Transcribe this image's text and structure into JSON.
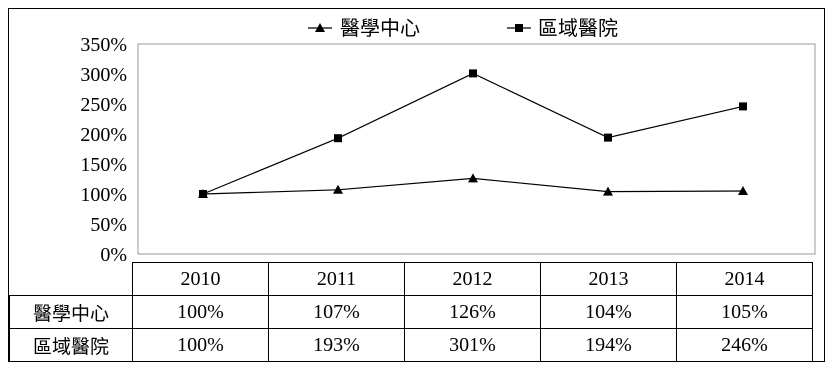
{
  "chart_data": {
    "type": "line",
    "categories": [
      "2010",
      "2011",
      "2012",
      "2013",
      "2014"
    ],
    "series": [
      {
        "name": "醫學中心",
        "marker": "triangle",
        "values": [
          "100%",
          "107%",
          "126%",
          "104%",
          "105%"
        ],
        "numeric": [
          100,
          107,
          126,
          104,
          105
        ]
      },
      {
        "name": "區域醫院",
        "marker": "square",
        "values": [
          "100%",
          "193%",
          "301%",
          "194%",
          "246%"
        ],
        "numeric": [
          100,
          193,
          301,
          194,
          246
        ]
      }
    ],
    "y_ticks": [
      "350%",
      "300%",
      "250%",
      "200%",
      "150%",
      "100%",
      "50%",
      "0%"
    ],
    "ylim": [
      0,
      350
    ],
    "legend_position": "top",
    "grid": false,
    "color": "#000000"
  }
}
